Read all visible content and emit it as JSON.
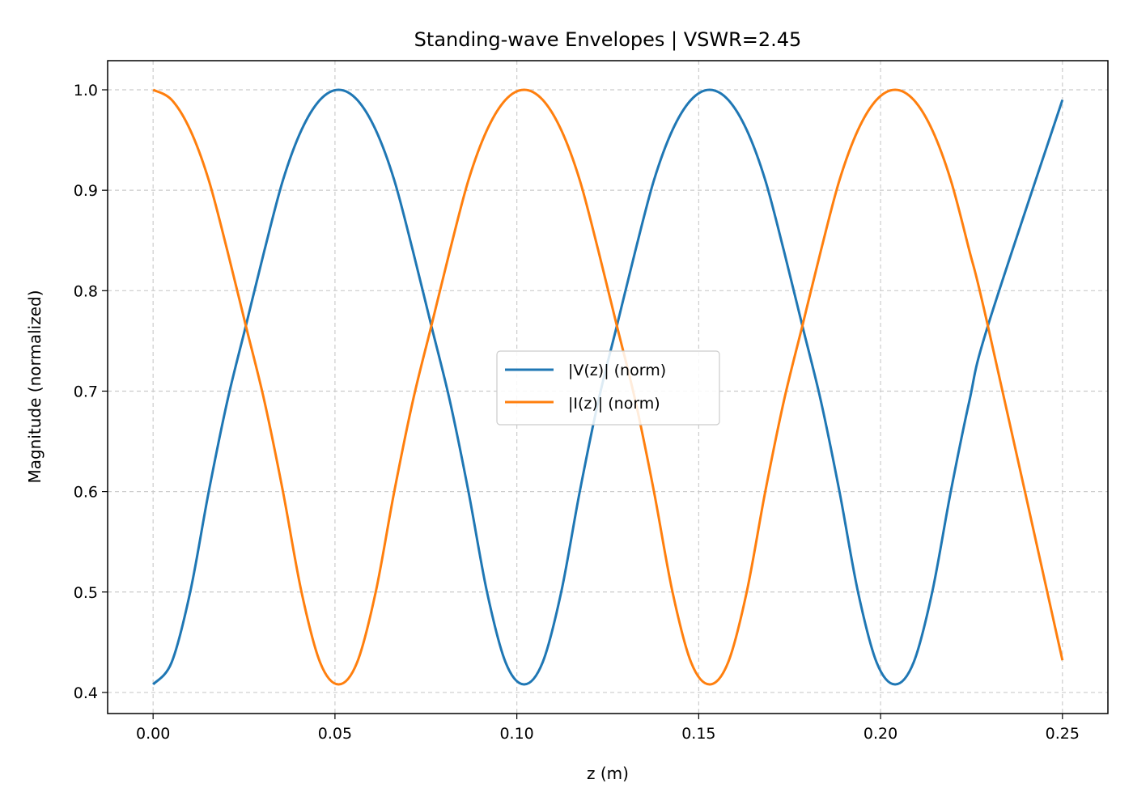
{
  "chart_data": {
    "type": "line",
    "title": "Standing-wave Envelopes | VSWR=2.45",
    "xlabel": "z (m)",
    "ylabel": "Magnitude (normalized)",
    "xlim": [
      -0.0125,
      0.2625
    ],
    "ylim": [
      0.379,
      1.029
    ],
    "xticks": [
      0.0,
      0.05,
      0.1,
      0.15,
      0.2,
      0.25
    ],
    "xtick_labels": [
      "0.00",
      "0.05",
      "0.10",
      "0.15",
      "0.20",
      "0.25"
    ],
    "yticks": [
      0.4,
      0.5,
      0.6,
      0.7,
      0.8,
      0.9,
      1.0
    ],
    "ytick_labels": [
      "0.4",
      "0.5",
      "0.6",
      "0.7",
      "0.8",
      "0.9",
      "1.0"
    ],
    "grid": true,
    "legend_position": "center",
    "series": [
      {
        "name": "|V(z)| (norm)",
        "color": "#1f77b4",
        "x": [
          0.0,
          0.0051,
          0.0102,
          0.0153,
          0.0204,
          0.0255,
          0.0306,
          0.0357,
          0.0408,
          0.0459,
          0.051,
          0.0561,
          0.0612,
          0.0663,
          0.0714,
          0.0765,
          0.0816,
          0.0867,
          0.0918,
          0.0969,
          0.102,
          0.1071,
          0.1122,
          0.1173,
          0.1224,
          0.1275,
          0.1326,
          0.1377,
          0.1428,
          0.1479,
          0.153,
          0.1581,
          0.1632,
          0.1683,
          0.1734,
          0.1785,
          0.1836,
          0.1887,
          0.1938,
          0.1989,
          0.204,
          0.2091,
          0.2142,
          0.2193,
          0.2244,
          0.2295,
          0.25
        ],
        "values": [
          0.408,
          0.43,
          0.5,
          0.6,
          0.69,
          0.765,
          0.84,
          0.91,
          0.96,
          0.99,
          1.0,
          0.99,
          0.96,
          0.91,
          0.84,
          0.765,
          0.69,
          0.6,
          0.5,
          0.43,
          0.408,
          0.43,
          0.5,
          0.6,
          0.69,
          0.765,
          0.84,
          0.91,
          0.96,
          0.99,
          1.0,
          0.99,
          0.96,
          0.91,
          0.84,
          0.765,
          0.69,
          0.6,
          0.5,
          0.43,
          0.408,
          0.43,
          0.5,
          0.6,
          0.69,
          0.765,
          0.99
        ]
      },
      {
        "name": "|I(z)| (norm)",
        "color": "#ff7f0e",
        "x": [
          0.0,
          0.0051,
          0.0102,
          0.0153,
          0.0204,
          0.0255,
          0.0306,
          0.0357,
          0.0408,
          0.0459,
          0.051,
          0.0561,
          0.0612,
          0.0663,
          0.0714,
          0.0765,
          0.0816,
          0.0867,
          0.0918,
          0.0969,
          0.102,
          0.1071,
          0.1122,
          0.1173,
          0.1224,
          0.1275,
          0.1326,
          0.1377,
          0.1428,
          0.1479,
          0.153,
          0.1581,
          0.1632,
          0.1683,
          0.1734,
          0.1785,
          0.1836,
          0.1887,
          0.1938,
          0.1989,
          0.204,
          0.2091,
          0.2142,
          0.2193,
          0.2244,
          0.2295,
          0.25
        ],
        "values": [
          1.0,
          0.99,
          0.96,
          0.91,
          0.84,
          0.765,
          0.69,
          0.6,
          0.5,
          0.43,
          0.408,
          0.43,
          0.5,
          0.6,
          0.69,
          0.765,
          0.84,
          0.91,
          0.96,
          0.99,
          1.0,
          0.99,
          0.96,
          0.91,
          0.84,
          0.765,
          0.69,
          0.6,
          0.5,
          0.43,
          0.408,
          0.43,
          0.5,
          0.6,
          0.69,
          0.765,
          0.84,
          0.91,
          0.96,
          0.99,
          1.0,
          0.99,
          0.96,
          0.91,
          0.84,
          0.765,
          0.432
        ]
      }
    ]
  }
}
